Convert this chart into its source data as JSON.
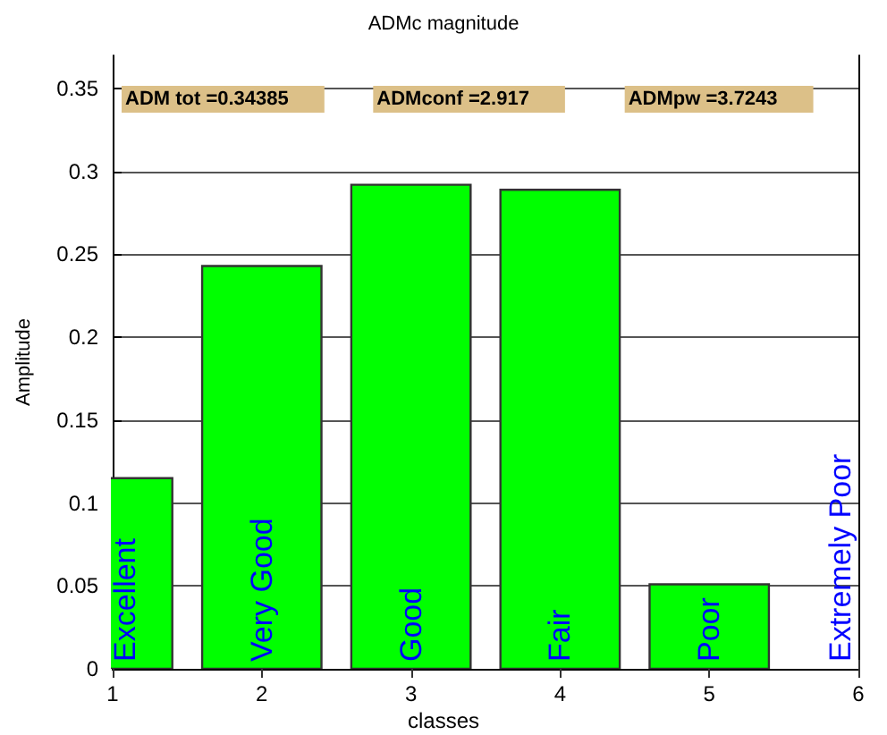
{
  "chart_data": {
    "type": "bar",
    "title": "ADMc magnitude",
    "xlabel": "classes",
    "ylabel": "Amplitude",
    "x": [
      1,
      2,
      3,
      4,
      5
    ],
    "values": [
      0.115,
      0.243,
      0.292,
      0.289,
      0.051
    ],
    "color": "#00ff00",
    "xlim": [
      1,
      6
    ],
    "xticks": [
      1,
      2,
      3,
      4,
      5,
      6
    ],
    "ylim": [
      0,
      0.37
    ],
    "yticks": [
      0,
      0.05,
      0.1,
      0.15,
      0.2,
      0.25,
      0.3,
      0.35
    ],
    "grid": "y",
    "annotations": [
      "ADM tot =0.34385",
      "ADMconf =2.917",
      "ADMpw =3.7243",
      "Excellent",
      "Very Good",
      "Good",
      "Fair",
      "Poor",
      "Extremely Poor"
    ]
  }
}
